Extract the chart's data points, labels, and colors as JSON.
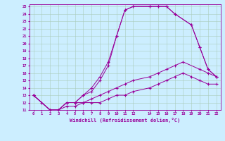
{
  "xlabel": "Windchill (Refroidissement éolien,°C)",
  "bg_color": "#cceeff",
  "line_color": "#990099",
  "grid_color": "#aaccbb",
  "xlim": [
    -0.5,
    22.5
  ],
  "ylim": [
    11,
    25.3
  ],
  "xticks": [
    0,
    1,
    2,
    3,
    4,
    5,
    6,
    7,
    8,
    9,
    10,
    11,
    12,
    14,
    15,
    16,
    17,
    18,
    19,
    20,
    21,
    22
  ],
  "yticks": [
    11,
    12,
    13,
    14,
    15,
    16,
    17,
    18,
    19,
    20,
    21,
    22,
    23,
    24,
    25
  ],
  "curve1_x": [
    0,
    1,
    2,
    3,
    4,
    5,
    6,
    7,
    8,
    9,
    10,
    11,
    12,
    14,
    15,
    16,
    17,
    19,
    20,
    21,
    22
  ],
  "curve1_y": [
    13,
    12,
    11,
    11,
    12,
    12,
    13,
    14,
    15.5,
    17.5,
    21,
    24.5,
    25,
    25,
    25,
    25,
    24,
    22.5,
    19.5,
    16.5,
    15.5
  ],
  "curve2_x": [
    0,
    2,
    3,
    4,
    5,
    6,
    7,
    8,
    9,
    10,
    11,
    12,
    14,
    15,
    16,
    17,
    19,
    20,
    21,
    22
  ],
  "curve2_y": [
    13,
    11,
    11,
    12,
    12,
    13,
    13.5,
    15,
    17,
    21,
    24.5,
    25,
    25,
    25,
    25,
    24,
    22.5,
    19.5,
    16.5,
    15.5
  ],
  "curve3_x": [
    0,
    2,
    3,
    4,
    5,
    6,
    7,
    8,
    9,
    10,
    11,
    12,
    14,
    15,
    16,
    17,
    18,
    20,
    21,
    22
  ],
  "curve3_y": [
    13,
    11,
    11,
    12,
    12,
    12,
    12.5,
    13,
    13.5,
    14,
    14.5,
    15,
    15.5,
    16,
    16.5,
    17,
    17.5,
    16.5,
    16,
    15.5
  ],
  "curve4_x": [
    0,
    2,
    3,
    4,
    5,
    6,
    7,
    8,
    9,
    10,
    11,
    12,
    14,
    15,
    16,
    17,
    18,
    19,
    20,
    21,
    22
  ],
  "curve4_y": [
    13,
    11,
    11,
    11.5,
    11.5,
    12,
    12,
    12,
    12.5,
    13,
    13,
    13.5,
    14,
    14.5,
    15,
    15.5,
    16,
    15.5,
    15,
    14.5,
    14.5
  ]
}
